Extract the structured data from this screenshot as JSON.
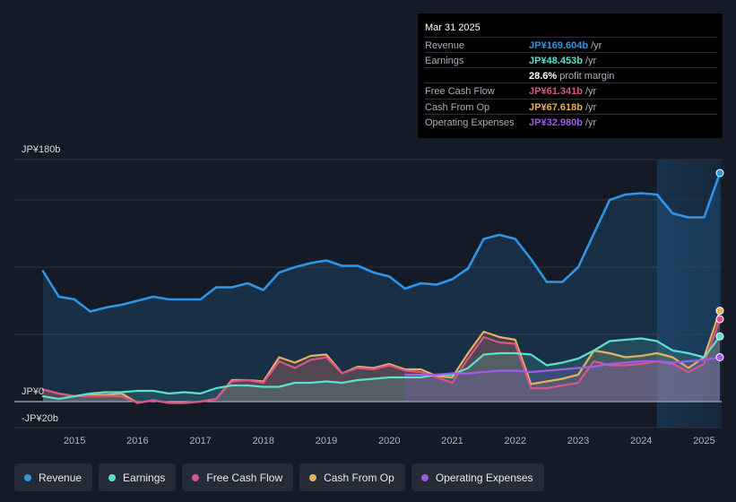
{
  "tooltip": {
    "date": "Mar 31 2025",
    "rows": [
      {
        "label": "Revenue",
        "value": "JP¥169.604b",
        "unit": "/yr",
        "color": "#2e95e8"
      },
      {
        "label": "Earnings",
        "value": "JP¥48.453b",
        "unit": "/yr",
        "color": "#5ce0cb"
      },
      {
        "label": "",
        "value": "28.6%",
        "unit": "profit margin",
        "color": "#ffffff"
      },
      {
        "label": "Free Cash Flow",
        "value": "JP¥61.341b",
        "unit": "/yr",
        "color": "#d9548a"
      },
      {
        "label": "Cash From Op",
        "value": "JP¥67.618b",
        "unit": "/yr",
        "color": "#e6b05c"
      },
      {
        "label": "Operating Expenses",
        "value": "JP¥32.980b",
        "unit": "/yr",
        "color": "#a25be8"
      }
    ]
  },
  "legend": [
    {
      "label": "Revenue",
      "color": "#2e95e8"
    },
    {
      "label": "Earnings",
      "color": "#5ce0cb"
    },
    {
      "label": "Free Cash Flow",
      "color": "#d9548a"
    },
    {
      "label": "Cash From Op",
      "color": "#e6b05c"
    },
    {
      "label": "Operating Expenses",
      "color": "#a25be8"
    }
  ],
  "chart_data": {
    "type": "area",
    "title": "",
    "unit": "JP¥ billions",
    "y_axis_labels": [
      {
        "text": "JP¥180b",
        "value": 180
      },
      {
        "text": "JP¥0",
        "value": 0
      },
      {
        "text": "-JP¥20b",
        "value": -20
      }
    ],
    "ylim": [
      -20,
      180
    ],
    "xlim": [
      2014.5,
      2025.25
    ],
    "x_ticks": [
      "2015",
      "2016",
      "2017",
      "2018",
      "2019",
      "2020",
      "2021",
      "2022",
      "2023",
      "2024",
      "2025"
    ],
    "highlight_start": 2024.25,
    "series": [
      {
        "name": "Revenue",
        "color": "#2e95e8",
        "fill": true,
        "points": [
          [
            2014.5,
            97
          ],
          [
            2014.75,
            78
          ],
          [
            2015.0,
            76
          ],
          [
            2015.25,
            67
          ],
          [
            2015.5,
            70
          ],
          [
            2015.75,
            72
          ],
          [
            2016.0,
            75
          ],
          [
            2016.25,
            78
          ],
          [
            2016.5,
            76
          ],
          [
            2016.75,
            76
          ],
          [
            2017.0,
            76
          ],
          [
            2017.25,
            85
          ],
          [
            2017.5,
            85
          ],
          [
            2017.75,
            88
          ],
          [
            2018.0,
            83
          ],
          [
            2018.25,
            96
          ],
          [
            2018.5,
            100
          ],
          [
            2018.75,
            103
          ],
          [
            2019.0,
            105
          ],
          [
            2019.25,
            101
          ],
          [
            2019.5,
            101
          ],
          [
            2019.75,
            96
          ],
          [
            2020.0,
            93
          ],
          [
            2020.25,
            84
          ],
          [
            2020.5,
            88
          ],
          [
            2020.75,
            87
          ],
          [
            2021.0,
            91
          ],
          [
            2021.25,
            99
          ],
          [
            2021.5,
            121
          ],
          [
            2021.75,
            124
          ],
          [
            2022.0,
            121
          ],
          [
            2022.25,
            106
          ],
          [
            2022.5,
            89
          ],
          [
            2022.75,
            89
          ],
          [
            2023.0,
            100
          ],
          [
            2023.25,
            125
          ],
          [
            2023.5,
            150
          ],
          [
            2023.75,
            154
          ],
          [
            2024.0,
            155
          ],
          [
            2024.25,
            154
          ],
          [
            2024.5,
            140
          ],
          [
            2024.75,
            137
          ],
          [
            2025.0,
            137
          ],
          [
            2025.25,
            170
          ]
        ]
      },
      {
        "name": "Earnings",
        "color": "#5ce0cb",
        "fill": true,
        "points": [
          [
            2014.5,
            4
          ],
          [
            2014.75,
            2
          ],
          [
            2015.0,
            4
          ],
          [
            2015.25,
            6
          ],
          [
            2015.5,
            7
          ],
          [
            2015.75,
            7
          ],
          [
            2016.0,
            8
          ],
          [
            2016.25,
            8
          ],
          [
            2016.5,
            6
          ],
          [
            2016.75,
            7
          ],
          [
            2017.0,
            6
          ],
          [
            2017.25,
            10
          ],
          [
            2017.5,
            12
          ],
          [
            2017.75,
            12
          ],
          [
            2018.0,
            11
          ],
          [
            2018.25,
            11
          ],
          [
            2018.5,
            14
          ],
          [
            2018.75,
            14
          ],
          [
            2019.0,
            15
          ],
          [
            2019.25,
            14
          ],
          [
            2019.5,
            16
          ],
          [
            2019.75,
            17
          ],
          [
            2020.0,
            18
          ],
          [
            2020.25,
            18
          ],
          [
            2020.5,
            18
          ],
          [
            2020.75,
            20
          ],
          [
            2021.0,
            20
          ],
          [
            2021.25,
            25
          ],
          [
            2021.5,
            35
          ],
          [
            2021.75,
            36
          ],
          [
            2022.0,
            36
          ],
          [
            2022.25,
            35
          ],
          [
            2022.5,
            27
          ],
          [
            2022.75,
            29
          ],
          [
            2023.0,
            32
          ],
          [
            2023.25,
            38
          ],
          [
            2023.5,
            45
          ],
          [
            2023.75,
            46
          ],
          [
            2024.0,
            47
          ],
          [
            2024.25,
            45
          ],
          [
            2024.5,
            38
          ],
          [
            2024.75,
            36
          ],
          [
            2025.0,
            33
          ],
          [
            2025.25,
            48.5
          ]
        ]
      },
      {
        "name": "Free Cash Flow",
        "color": "#d9548a",
        "fill": true,
        "points": [
          [
            2014.5,
            9
          ],
          [
            2014.75,
            6
          ],
          [
            2015.0,
            4
          ],
          [
            2015.25,
            4
          ],
          [
            2015.5,
            4
          ],
          [
            2015.75,
            4
          ],
          [
            2016.0,
            -1
          ],
          [
            2016.25,
            1
          ],
          [
            2016.5,
            -1
          ],
          [
            2016.75,
            -1
          ],
          [
            2017.0,
            0
          ],
          [
            2017.25,
            2
          ],
          [
            2017.5,
            15
          ],
          [
            2017.75,
            16
          ],
          [
            2018.0,
            14
          ],
          [
            2018.25,
            30
          ],
          [
            2018.5,
            25
          ],
          [
            2018.75,
            31
          ],
          [
            2019.0,
            33
          ],
          [
            2019.25,
            21
          ],
          [
            2019.5,
            25
          ],
          [
            2019.75,
            24
          ],
          [
            2020.0,
            27
          ],
          [
            2020.25,
            23
          ],
          [
            2020.5,
            22
          ],
          [
            2020.75,
            18
          ],
          [
            2021.0,
            14
          ],
          [
            2021.25,
            32
          ],
          [
            2021.5,
            48
          ],
          [
            2021.75,
            44
          ],
          [
            2022.0,
            43
          ],
          [
            2022.25,
            10
          ],
          [
            2022.5,
            10
          ],
          [
            2022.75,
            12
          ],
          [
            2023.0,
            14
          ],
          [
            2023.25,
            30
          ],
          [
            2023.5,
            27
          ],
          [
            2023.75,
            27
          ],
          [
            2024.0,
            28
          ],
          [
            2024.25,
            30
          ],
          [
            2024.5,
            28
          ],
          [
            2024.75,
            22
          ],
          [
            2025.0,
            28
          ],
          [
            2025.25,
            61.3
          ]
        ]
      },
      {
        "name": "Cash From Op",
        "color": "#e6b05c",
        "fill": true,
        "points": [
          [
            2014.5,
            9
          ],
          [
            2014.75,
            6
          ],
          [
            2015.0,
            4
          ],
          [
            2015.25,
            5
          ],
          [
            2015.5,
            5
          ],
          [
            2015.75,
            6
          ],
          [
            2016.0,
            -1
          ],
          [
            2016.25,
            1
          ],
          [
            2016.5,
            -1
          ],
          [
            2016.75,
            -1
          ],
          [
            2017.0,
            0
          ],
          [
            2017.25,
            2
          ],
          [
            2017.5,
            16
          ],
          [
            2017.75,
            16
          ],
          [
            2018.0,
            15
          ],
          [
            2018.25,
            33
          ],
          [
            2018.5,
            29
          ],
          [
            2018.75,
            34
          ],
          [
            2019.0,
            35
          ],
          [
            2019.25,
            21
          ],
          [
            2019.5,
            26
          ],
          [
            2019.75,
            25
          ],
          [
            2020.0,
            28
          ],
          [
            2020.25,
            24
          ],
          [
            2020.5,
            24
          ],
          [
            2020.75,
            19
          ],
          [
            2021.0,
            18
          ],
          [
            2021.25,
            36
          ],
          [
            2021.5,
            52
          ],
          [
            2021.75,
            48
          ],
          [
            2022.0,
            46
          ],
          [
            2022.25,
            13
          ],
          [
            2022.5,
            15
          ],
          [
            2022.75,
            17
          ],
          [
            2023.0,
            20
          ],
          [
            2023.25,
            38
          ],
          [
            2023.5,
            36
          ],
          [
            2023.75,
            33
          ],
          [
            2024.0,
            34
          ],
          [
            2024.25,
            36
          ],
          [
            2024.5,
            33
          ],
          [
            2024.75,
            25
          ],
          [
            2025.0,
            33
          ],
          [
            2025.25,
            67.6
          ]
        ]
      },
      {
        "name": "Operating Expenses",
        "color": "#a25be8",
        "fill": true,
        "points": [
          [
            2020.25,
            20
          ],
          [
            2020.5,
            20
          ],
          [
            2020.75,
            20
          ],
          [
            2021.0,
            21
          ],
          [
            2021.25,
            21
          ],
          [
            2021.5,
            22
          ],
          [
            2021.75,
            23
          ],
          [
            2022.0,
            23
          ],
          [
            2022.25,
            22
          ],
          [
            2022.5,
            23
          ],
          [
            2022.75,
            24
          ],
          [
            2023.0,
            25
          ],
          [
            2023.25,
            26
          ],
          [
            2023.5,
            28
          ],
          [
            2023.75,
            29
          ],
          [
            2024.0,
            30
          ],
          [
            2024.25,
            30
          ],
          [
            2024.5,
            29
          ],
          [
            2024.75,
            30
          ],
          [
            2025.0,
            31
          ],
          [
            2025.25,
            33
          ]
        ]
      }
    ]
  }
}
